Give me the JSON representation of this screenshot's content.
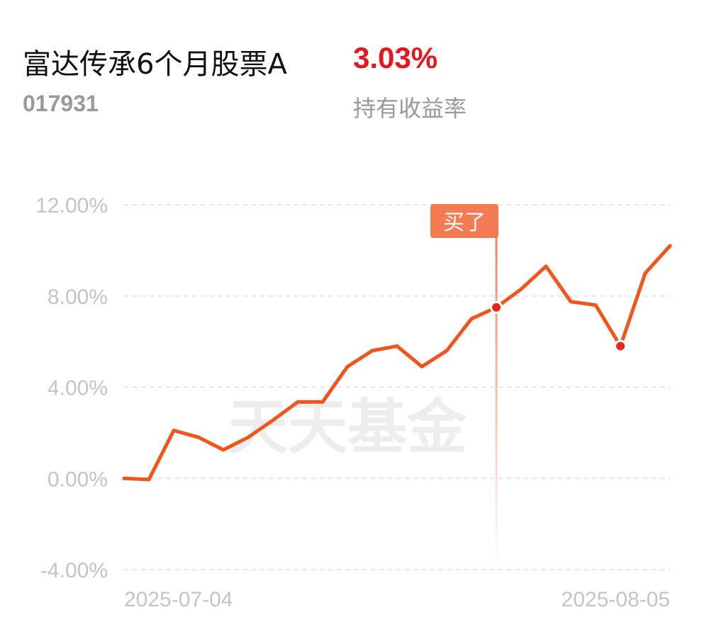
{
  "fund": {
    "name": "富达传承6个月股票A",
    "code": "017931",
    "return_value": "3.03%",
    "return_label": "持有收益率"
  },
  "watermark": "天天基金",
  "colors": {
    "line": "#f2541b",
    "marker_tag": "#f47b52",
    "return_red": "#e8161c",
    "axis_text": "#c4c4c4",
    "grid": "#e6e6e6"
  },
  "chart_data": {
    "type": "line",
    "ylim": [
      -4,
      12
    ],
    "y_ticks": [
      12,
      8,
      4,
      0,
      -4
    ],
    "y_tick_labels": [
      "12.00%",
      "8.00%",
      "4.00%",
      "0.00%",
      "-4.00%"
    ],
    "x_tick_labels": [
      "2025-07-04",
      "2025-08-05"
    ],
    "grid": true,
    "series": [
      {
        "values": [
          0.0,
          -0.05,
          2.1,
          1.8,
          1.25,
          1.8,
          2.55,
          3.35,
          3.35,
          4.9,
          5.6,
          5.8,
          4.9,
          5.6,
          7.0,
          7.5,
          8.3,
          9.3,
          7.75,
          7.6,
          5.8,
          9.0,
          10.2
        ]
      }
    ],
    "markers": [
      {
        "index": 15,
        "value": 7.5,
        "label": "买了"
      },
      {
        "index": 20,
        "value": 5.8,
        "label": ""
      }
    ]
  }
}
